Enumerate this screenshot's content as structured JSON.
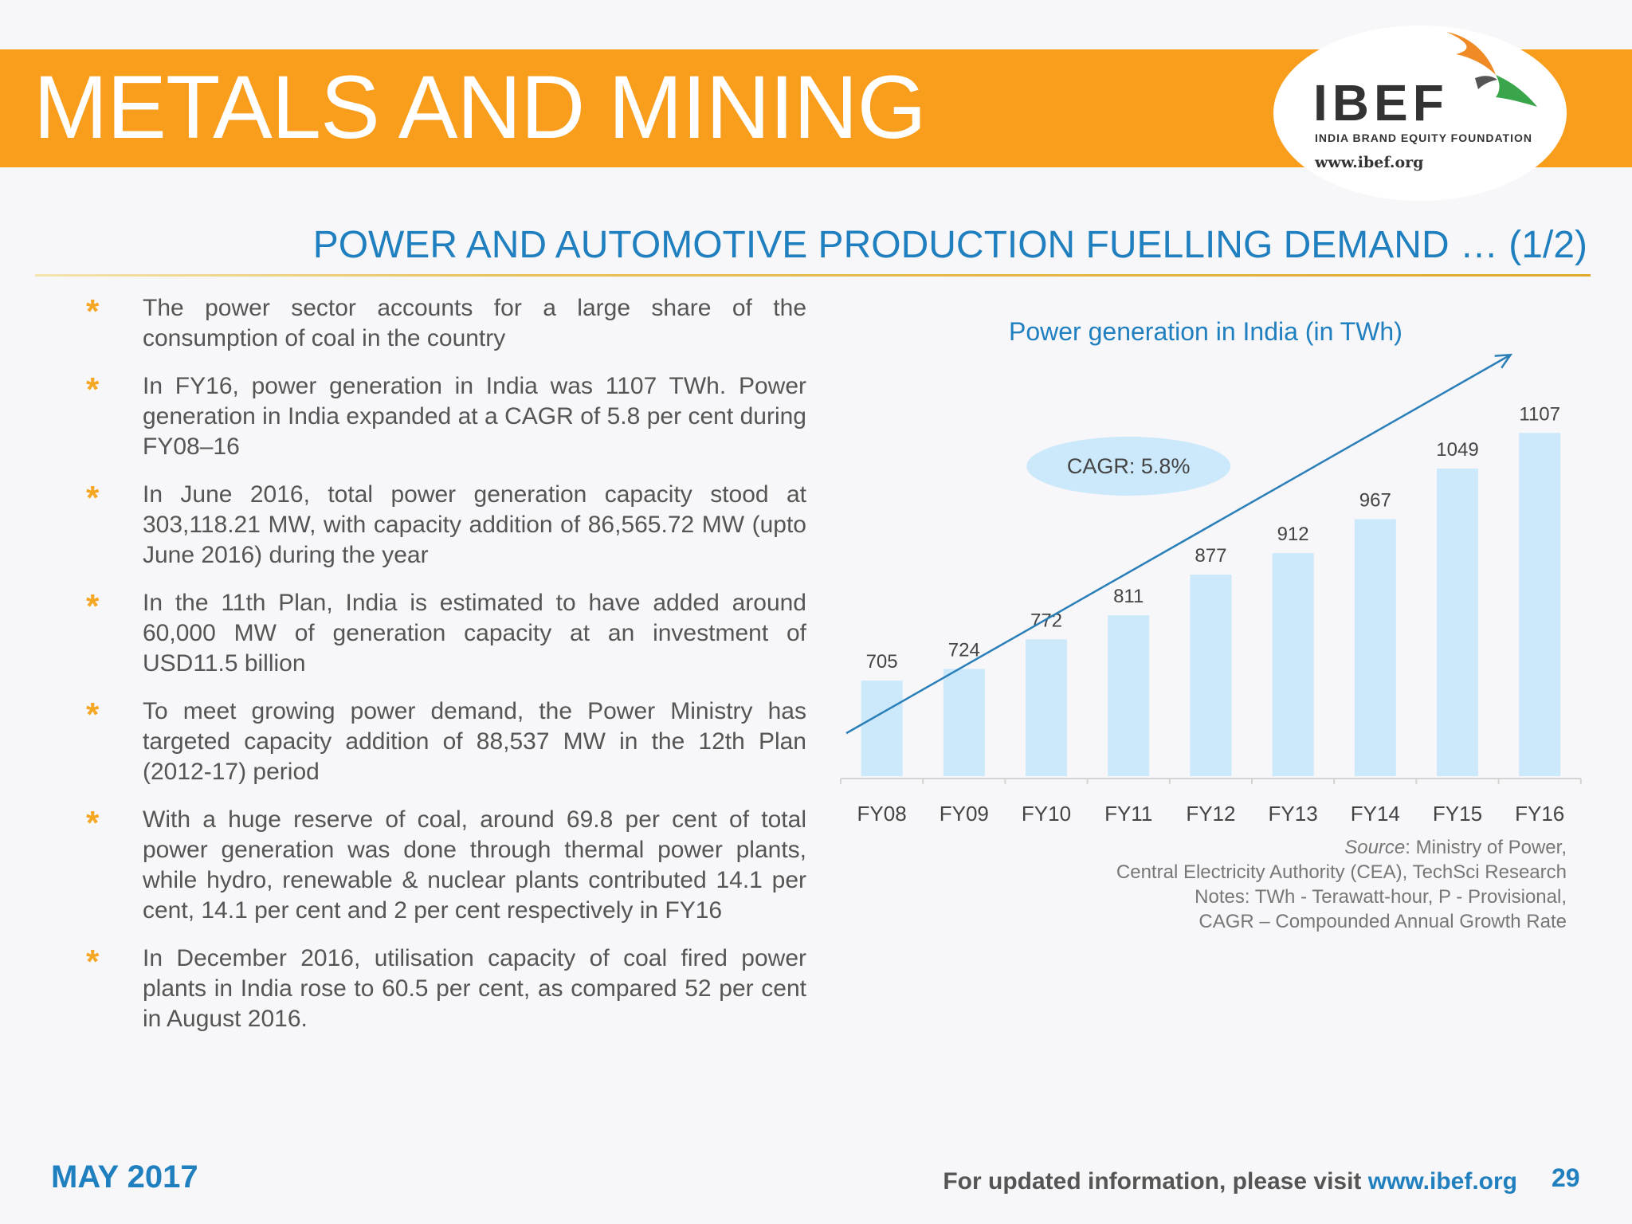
{
  "header": {
    "title": "METALS AND MINING",
    "logo_word": "IBEF",
    "logo_sub": "INDIA BRAND EQUITY FOUNDATION",
    "logo_url": "www.ibef.org"
  },
  "subtitle": "POWER AND AUTOMOTIVE PRODUCTION FUELLING DEMAND … (1/2)",
  "bullets": [
    "The power sector accounts for a large share of the consumption of coal in the country",
    "In FY16, power generation in India was 1107 TWh. Power generation in India expanded at a CAGR of 5.8 per cent during FY08–16",
    "In June 2016, total power generation capacity stood at 303,118.21 MW, with capacity addition of 86,565.72 MW (upto June 2016) during the year",
    "In the 11th Plan, India is estimated to have added around 60,000 MW of generation capacity at an investment of USD11.5 billion",
    "To meet growing power demand, the Power Ministry has targeted capacity addition of 88,537 MW in the 12th Plan (2012-17) period",
    "With a huge reserve of coal, around 69.8 per cent of total power generation was done through thermal power plants, while hydro, renewable & nuclear plants contributed 14.1 per cent, 14.1 per cent and 2 per cent respectively in FY16",
    "In December 2016, utilisation capacity of coal fired power plants in India rose to 60.5 per cent, as compared 52 per cent in August 2016."
  ],
  "bullet_marker": "*",
  "chart_data": {
    "type": "bar",
    "title": "Power generation in India (in TWh)",
    "categories": [
      "FY08",
      "FY09",
      "FY10",
      "FY11",
      "FY12",
      "FY13",
      "FY14",
      "FY15",
      "FY16"
    ],
    "values": [
      705,
      724,
      772,
      811,
      877,
      912,
      967,
      1049,
      1107
    ],
    "annotation": "CAGR: 5.8%",
    "xlabel": "",
    "ylabel": "",
    "ylim": [
      550,
      1150
    ],
    "bar_color": "#cce9fb",
    "trend_color": "#2a7fb8"
  },
  "source": {
    "label": "Source",
    "line1": ": Ministry of Power,",
    "line2": "Central Electricity Authority (CEA), TechSci Research",
    "line3": "Notes: TWh - Terawatt-hour, P - Provisional,",
    "line4": "CAGR – Compounded Annual Growth Rate"
  },
  "footer": {
    "date": "MAY 2017",
    "visit_text": "For updated information, please visit ",
    "visit_url": "www.ibef.org",
    "page": "29"
  },
  "colors": {
    "banner": "#f99d1c",
    "accent_blue": "#1f7fbf",
    "star": "#f5a623"
  }
}
